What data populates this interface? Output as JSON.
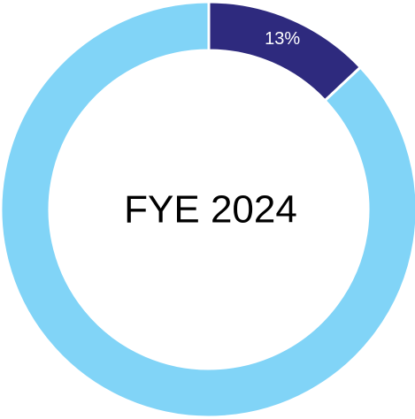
{
  "chart_data": {
    "type": "donut",
    "center_label": "FYE 2024",
    "values": [
      13,
      87
    ],
    "value_labels": [
      "13%",
      null
    ],
    "colors": [
      "#2e2a7e",
      "#81d4f7"
    ],
    "label_color": "#ffffff",
    "start_angle": 0,
    "direction": "clockwise"
  }
}
